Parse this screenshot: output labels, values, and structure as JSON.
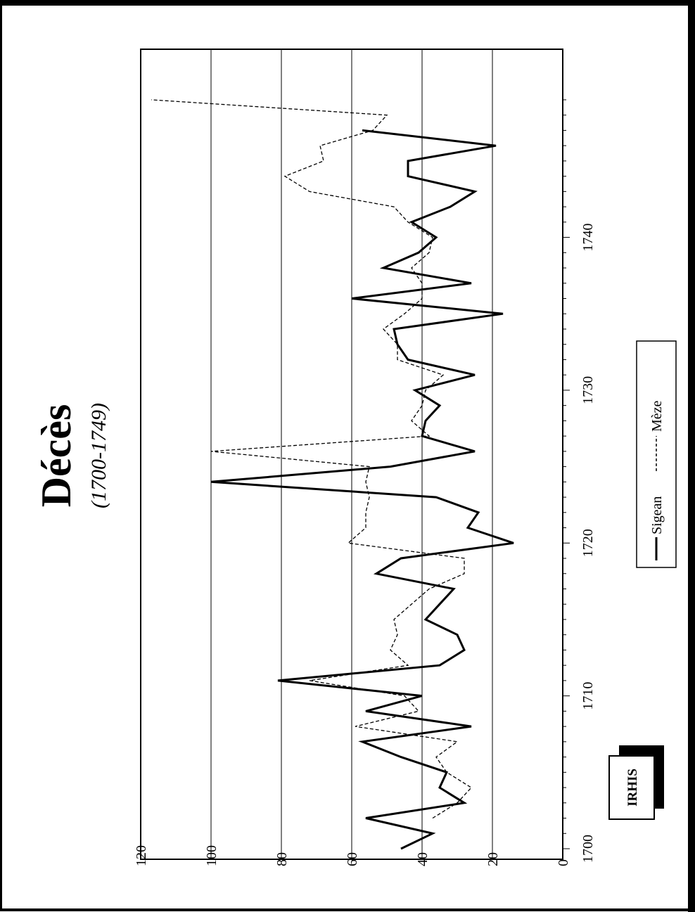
{
  "logo": {
    "text": "IRHIS"
  },
  "chart_data": {
    "type": "line",
    "title": "Décès",
    "subtitle": "(1700-1749)",
    "xlabel": "",
    "ylabel": "",
    "x_ticks": [
      "1700",
      "1710",
      "1720",
      "1730",
      "1740"
    ],
    "y_ticks": [
      "0",
      "20",
      "40",
      "60",
      "80",
      "100",
      "120"
    ],
    "xlim": [
      1700,
      1749
    ],
    "ylim": [
      0,
      120
    ],
    "grid": "horizontal",
    "legend_position": "bottom",
    "x": [
      1700,
      1701,
      1702,
      1703,
      1704,
      1705,
      1706,
      1707,
      1708,
      1709,
      1710,
      1711,
      1712,
      1713,
      1714,
      1715,
      1716,
      1717,
      1718,
      1719,
      1720,
      1721,
      1722,
      1723,
      1724,
      1725,
      1726,
      1727,
      1728,
      1729,
      1730,
      1731,
      1732,
      1733,
      1734,
      1735,
      1736,
      1737,
      1738,
      1739,
      1740,
      1741,
      1742,
      1743,
      1744,
      1745,
      1746,
      1747,
      1748,
      1749
    ],
    "series": [
      {
        "name": "Sigean",
        "style": "solid",
        "color": "#000000",
        "values": [
          46,
          37,
          56,
          28,
          35,
          33,
          46,
          57,
          26,
          56,
          40,
          81,
          35,
          28,
          30,
          39,
          35,
          31,
          53,
          46,
          14,
          27,
          24,
          36,
          100,
          49,
          25,
          40,
          39,
          35,
          42,
          25,
          44,
          47,
          48,
          17,
          60,
          26,
          51,
          41,
          36,
          43,
          32,
          25,
          44,
          44,
          19,
          57,
          null,
          null
        ]
      },
      {
        "name": "Mèze",
        "style": "dashed",
        "color": "#000000",
        "values": [
          null,
          null,
          37,
          30,
          26,
          33,
          36,
          30,
          59,
          41,
          45,
          72,
          44,
          49,
          47,
          48,
          43,
          38,
          28,
          28,
          61,
          56,
          56,
          55,
          56,
          55,
          100,
          38,
          43,
          40,
          39,
          34,
          47,
          47,
          51,
          45,
          40,
          40,
          43,
          38,
          37,
          44,
          48,
          72,
          79,
          68,
          69,
          54,
          50,
          117
        ]
      }
    ]
  }
}
